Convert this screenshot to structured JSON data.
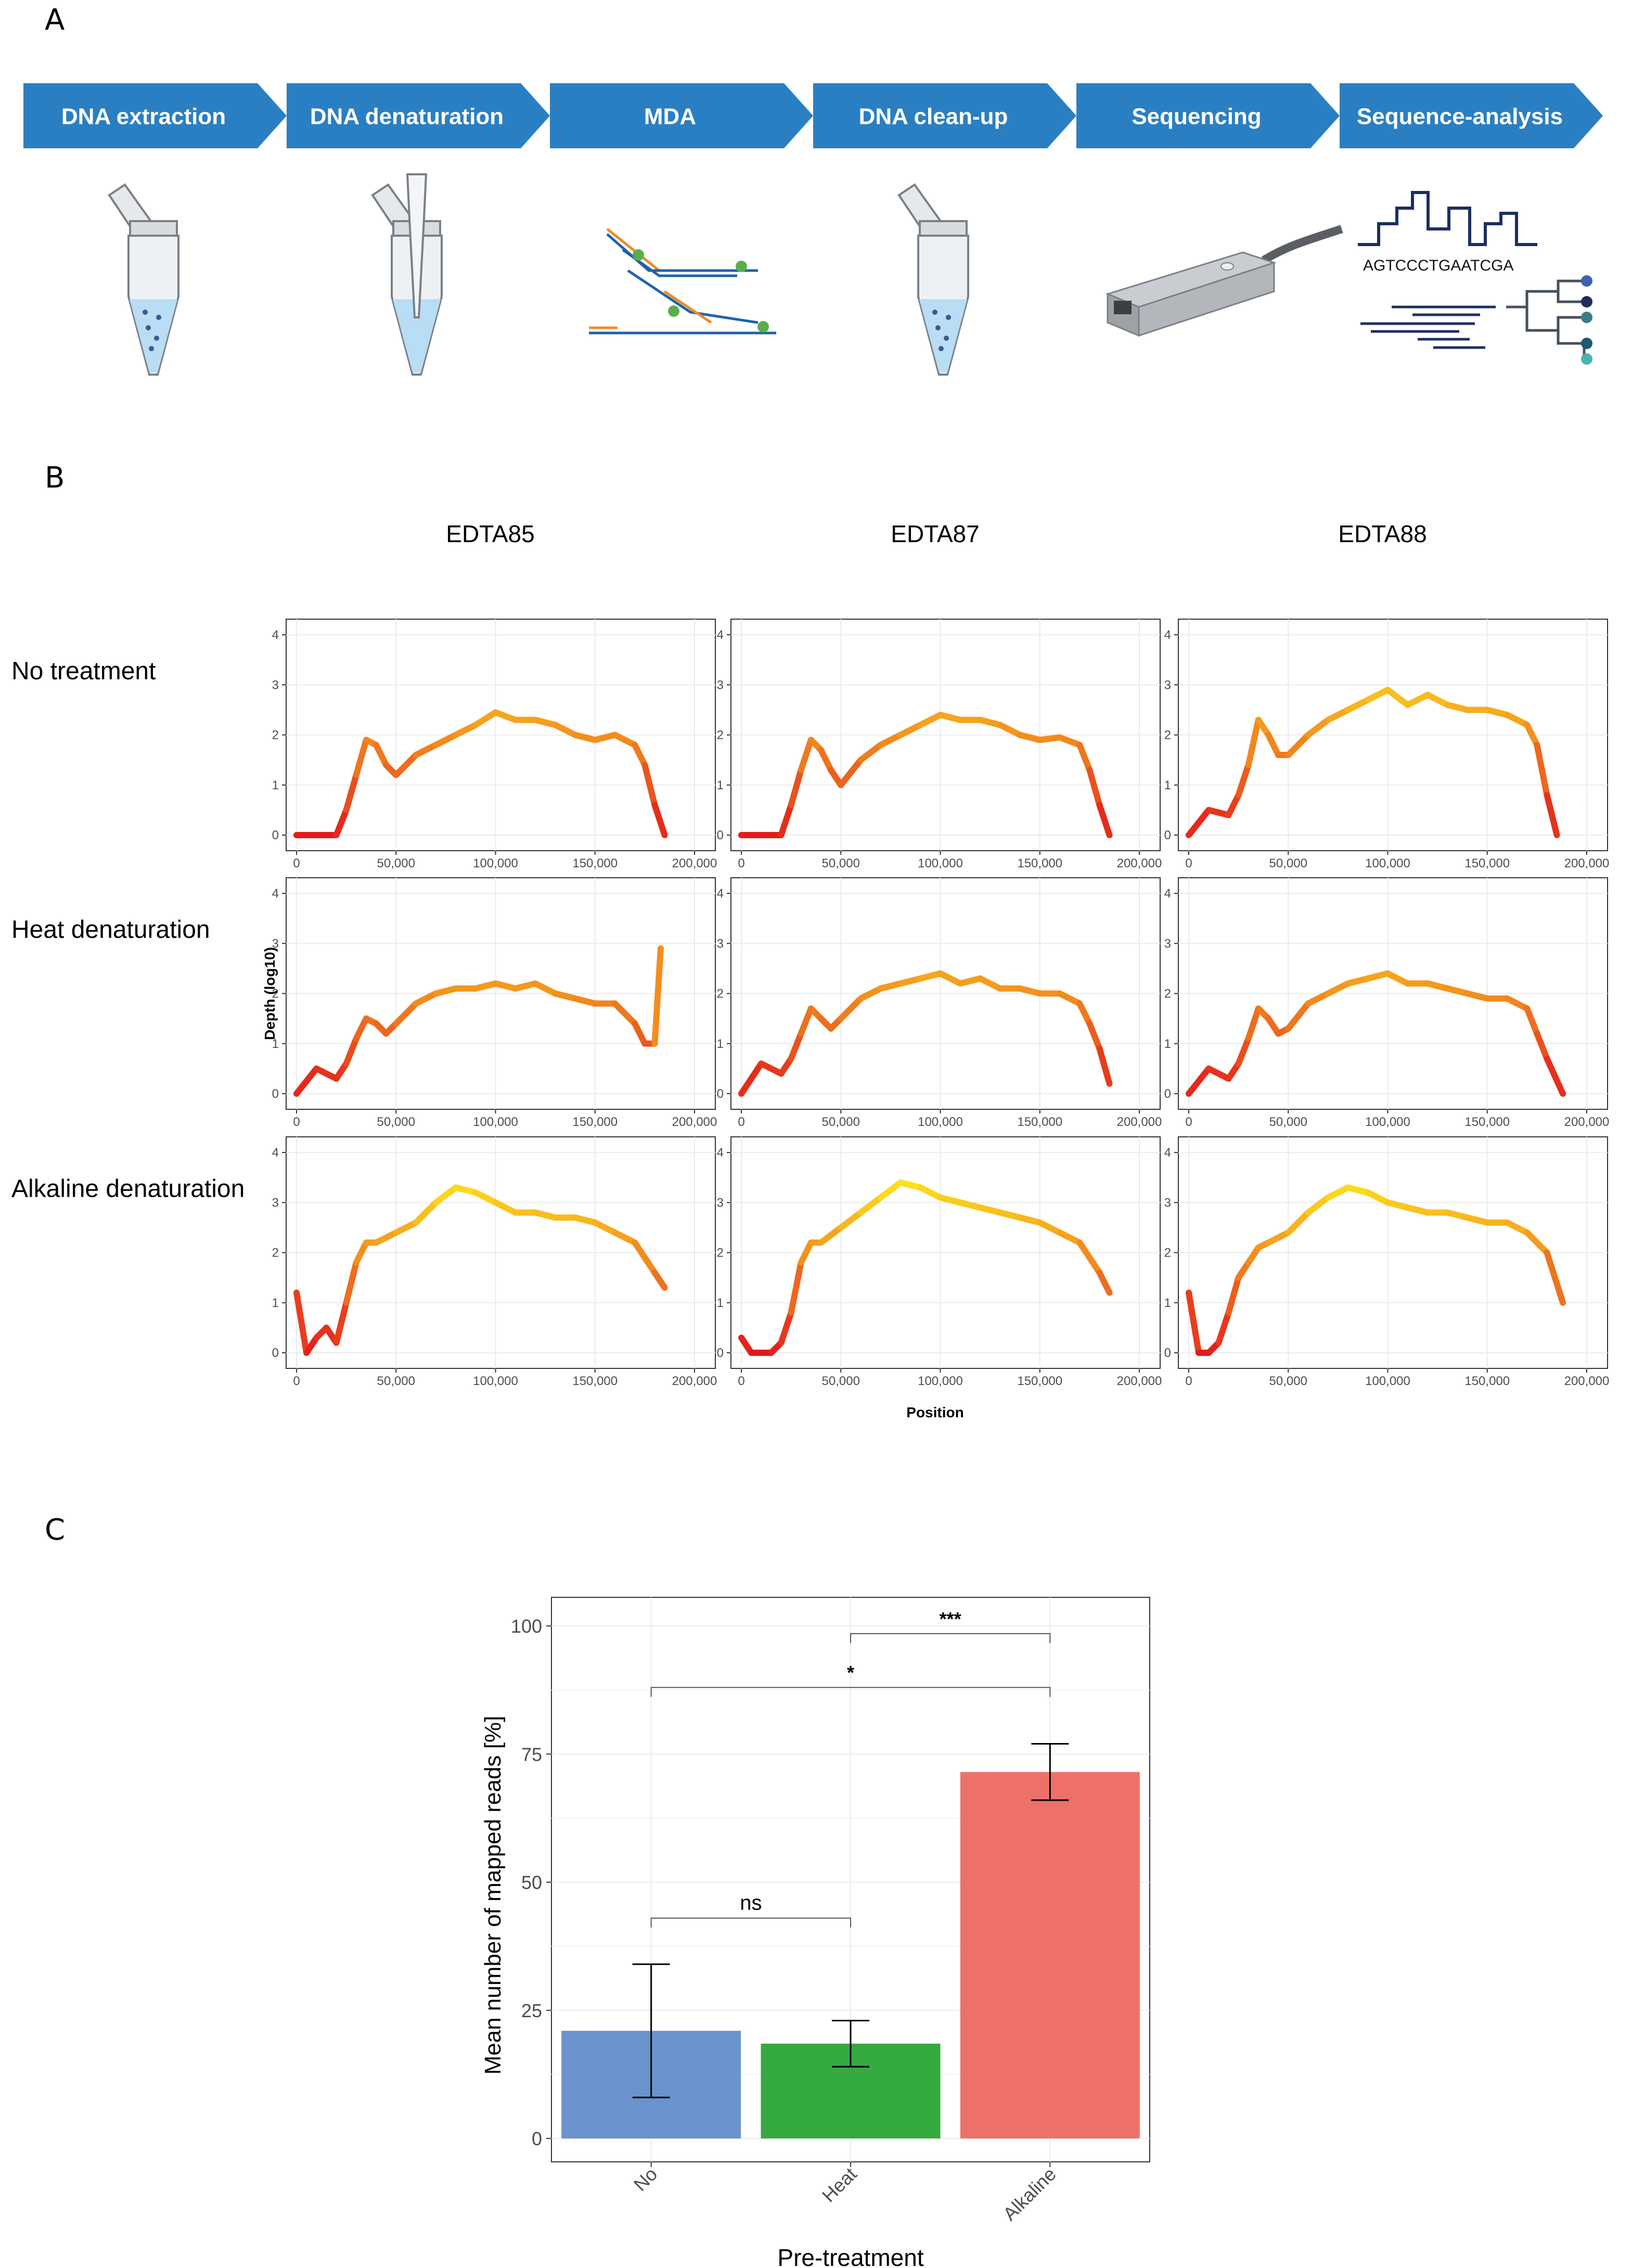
{
  "panels": {
    "a": "A",
    "b": "B",
    "c": "C"
  },
  "workflow": {
    "steps": [
      "DNA extraction",
      "DNA denaturation",
      "MDA",
      "DNA clean-up",
      "Sequencing",
      "Sequence-analysis"
    ],
    "step_color": "#2a7fc2",
    "icons": [
      "tube-icon",
      "tube-pipette-icon",
      "mda-strands-icon",
      "tube-icon",
      "sequencer-icon",
      "analysis-icon"
    ],
    "sequence_text": "AGTCCCTGAATCGA"
  },
  "coverage": {
    "columns": [
      "EDTA85",
      "EDTA87",
      "EDTA88"
    ],
    "rows": [
      "No treatment",
      "Heat denaturation",
      "Alkaline denaturation"
    ],
    "ylabel": "Depth (log10)",
    "xlabel": "Position",
    "xticks": [
      "0",
      "50,000",
      "100,000",
      "150,000",
      "200,000"
    ],
    "yticks": [
      "0",
      "1",
      "2",
      "3",
      "4"
    ]
  },
  "chart_data": [
    {
      "type": "line",
      "xlabel": "Position",
      "ylabel": "Depth (log10)",
      "xlim": [
        0,
        200000
      ],
      "ylim": [
        0,
        4
      ],
      "color_scale": [
        "#e31a1c",
        "#f07f1e",
        "#fde31e"
      ],
      "panels": [
        {
          "row": "No treatment",
          "column": "EDTA85",
          "x": [
            0,
            10000,
            20000,
            25000,
            30000,
            35000,
            40000,
            45000,
            50000,
            60000,
            70000,
            80000,
            90000,
            100000,
            110000,
            120000,
            130000,
            140000,
            150000,
            160000,
            170000,
            175000,
            180000,
            185000
          ],
          "y": [
            0,
            0,
            0,
            0.5,
            1.2,
            1.9,
            1.8,
            1.4,
            1.2,
            1.6,
            1.8,
            2.0,
            2.2,
            2.45,
            2.3,
            2.3,
            2.2,
            2.0,
            1.9,
            2.0,
            1.8,
            1.4,
            0.6,
            0
          ]
        },
        {
          "row": "No treatment",
          "column": "EDTA87",
          "x": [
            0,
            10000,
            20000,
            25000,
            30000,
            35000,
            40000,
            45000,
            50000,
            60000,
            70000,
            80000,
            90000,
            100000,
            110000,
            120000,
            130000,
            140000,
            150000,
            160000,
            170000,
            175000,
            180000,
            185000
          ],
          "y": [
            0,
            0,
            0,
            0.6,
            1.3,
            1.9,
            1.7,
            1.3,
            1.0,
            1.5,
            1.8,
            2.0,
            2.2,
            2.4,
            2.3,
            2.3,
            2.2,
            2.0,
            1.9,
            1.95,
            1.8,
            1.3,
            0.6,
            0
          ]
        },
        {
          "row": "No treatment",
          "column": "EDTA88",
          "x": [
            0,
            10000,
            20000,
            25000,
            30000,
            35000,
            40000,
            45000,
            50000,
            60000,
            70000,
            80000,
            90000,
            100000,
            110000,
            120000,
            130000,
            140000,
            150000,
            160000,
            170000,
            175000,
            180000,
            185000
          ],
          "y": [
            0,
            0.5,
            0.4,
            0.8,
            1.4,
            2.3,
            2.0,
            1.6,
            1.6,
            2.0,
            2.3,
            2.5,
            2.7,
            2.9,
            2.6,
            2.8,
            2.6,
            2.5,
            2.5,
            2.4,
            2.2,
            1.8,
            0.8,
            0
          ]
        },
        {
          "row": "Heat denaturation",
          "column": "EDTA85",
          "x": [
            0,
            10000,
            20000,
            25000,
            30000,
            35000,
            40000,
            45000,
            50000,
            60000,
            70000,
            80000,
            90000,
            100000,
            110000,
            120000,
            130000,
            140000,
            150000,
            160000,
            170000,
            175000,
            180000,
            183000
          ],
          "y": [
            0,
            0.5,
            0.3,
            0.6,
            1.1,
            1.5,
            1.4,
            1.2,
            1.4,
            1.8,
            2.0,
            2.1,
            2.1,
            2.2,
            2.1,
            2.2,
            2.0,
            1.9,
            1.8,
            1.8,
            1.4,
            1.0,
            1.0,
            2.9
          ]
        },
        {
          "row": "Heat denaturation",
          "column": "EDTA87",
          "x": [
            0,
            10000,
            20000,
            25000,
            30000,
            35000,
            40000,
            45000,
            50000,
            60000,
            70000,
            80000,
            90000,
            100000,
            110000,
            120000,
            130000,
            140000,
            150000,
            160000,
            170000,
            175000,
            180000,
            185000
          ],
          "y": [
            0,
            0.6,
            0.4,
            0.7,
            1.2,
            1.7,
            1.5,
            1.3,
            1.5,
            1.9,
            2.1,
            2.2,
            2.3,
            2.4,
            2.2,
            2.3,
            2.1,
            2.1,
            2.0,
            2.0,
            1.8,
            1.4,
            0.9,
            0.2
          ]
        },
        {
          "row": "Heat denaturation",
          "column": "EDTA88",
          "x": [
            0,
            10000,
            20000,
            25000,
            30000,
            35000,
            40000,
            45000,
            50000,
            60000,
            70000,
            80000,
            90000,
            100000,
            110000,
            120000,
            130000,
            140000,
            150000,
            160000,
            170000,
            175000,
            180000,
            188000
          ],
          "y": [
            0,
            0.5,
            0.3,
            0.6,
            1.1,
            1.7,
            1.5,
            1.2,
            1.3,
            1.8,
            2.0,
            2.2,
            2.3,
            2.4,
            2.2,
            2.2,
            2.1,
            2.0,
            1.9,
            1.9,
            1.7,
            1.2,
            0.7,
            0
          ]
        },
        {
          "row": "Alkaline denaturation",
          "column": "EDTA85",
          "x": [
            0,
            5000,
            10000,
            15000,
            20000,
            25000,
            30000,
            35000,
            40000,
            50000,
            60000,
            70000,
            80000,
            90000,
            100000,
            110000,
            120000,
            130000,
            140000,
            150000,
            160000,
            170000,
            180000,
            185000
          ],
          "y": [
            1.2,
            0,
            0.3,
            0.5,
            0.2,
            1.0,
            1.8,
            2.2,
            2.2,
            2.4,
            2.6,
            3.0,
            3.3,
            3.2,
            3.0,
            2.8,
            2.8,
            2.7,
            2.7,
            2.6,
            2.4,
            2.2,
            1.6,
            1.3
          ]
        },
        {
          "row": "Alkaline denaturation",
          "column": "EDTA87",
          "x": [
            0,
            5000,
            10000,
            15000,
            20000,
            25000,
            30000,
            35000,
            40000,
            50000,
            60000,
            70000,
            80000,
            90000,
            100000,
            110000,
            120000,
            130000,
            140000,
            150000,
            160000,
            170000,
            180000,
            185000
          ],
          "y": [
            0.3,
            0,
            0,
            0,
            0.2,
            0.8,
            1.8,
            2.2,
            2.2,
            2.5,
            2.8,
            3.1,
            3.4,
            3.3,
            3.1,
            3.0,
            2.9,
            2.8,
            2.7,
            2.6,
            2.4,
            2.2,
            1.6,
            1.2
          ]
        },
        {
          "row": "Alkaline denaturation",
          "column": "EDTA88",
          "x": [
            0,
            5000,
            10000,
            15000,
            20000,
            25000,
            30000,
            35000,
            40000,
            50000,
            60000,
            70000,
            80000,
            90000,
            100000,
            110000,
            120000,
            130000,
            140000,
            150000,
            160000,
            170000,
            180000,
            188000
          ],
          "y": [
            1.2,
            0,
            0,
            0.2,
            0.8,
            1.5,
            1.8,
            2.1,
            2.2,
            2.4,
            2.8,
            3.1,
            3.3,
            3.2,
            3.0,
            2.9,
            2.8,
            2.8,
            2.7,
            2.6,
            2.6,
            2.4,
            2.0,
            1.0
          ]
        }
      ]
    },
    {
      "type": "bar",
      "categories": [
        "No",
        "Heat",
        "Alkaline"
      ],
      "values": [
        21,
        18.5,
        71.5
      ],
      "error": [
        13,
        4.5,
        5.5
      ],
      "colors": [
        "#6b93cd",
        "#35aa3e",
        "#ee7169"
      ],
      "xlabel": "Pre-treatment",
      "ylabel": "Mean number of mapped reads [%]",
      "ylim": [
        0,
        100
      ],
      "yticks": [
        "0",
        "25",
        "50",
        "75",
        "100"
      ],
      "significance": [
        {
          "from": "No",
          "to": "Heat",
          "label": "ns"
        },
        {
          "from": "No",
          "to": "Alkaline",
          "label": "*"
        },
        {
          "from": "Heat",
          "to": "Alkaline",
          "label": "***"
        }
      ]
    }
  ]
}
